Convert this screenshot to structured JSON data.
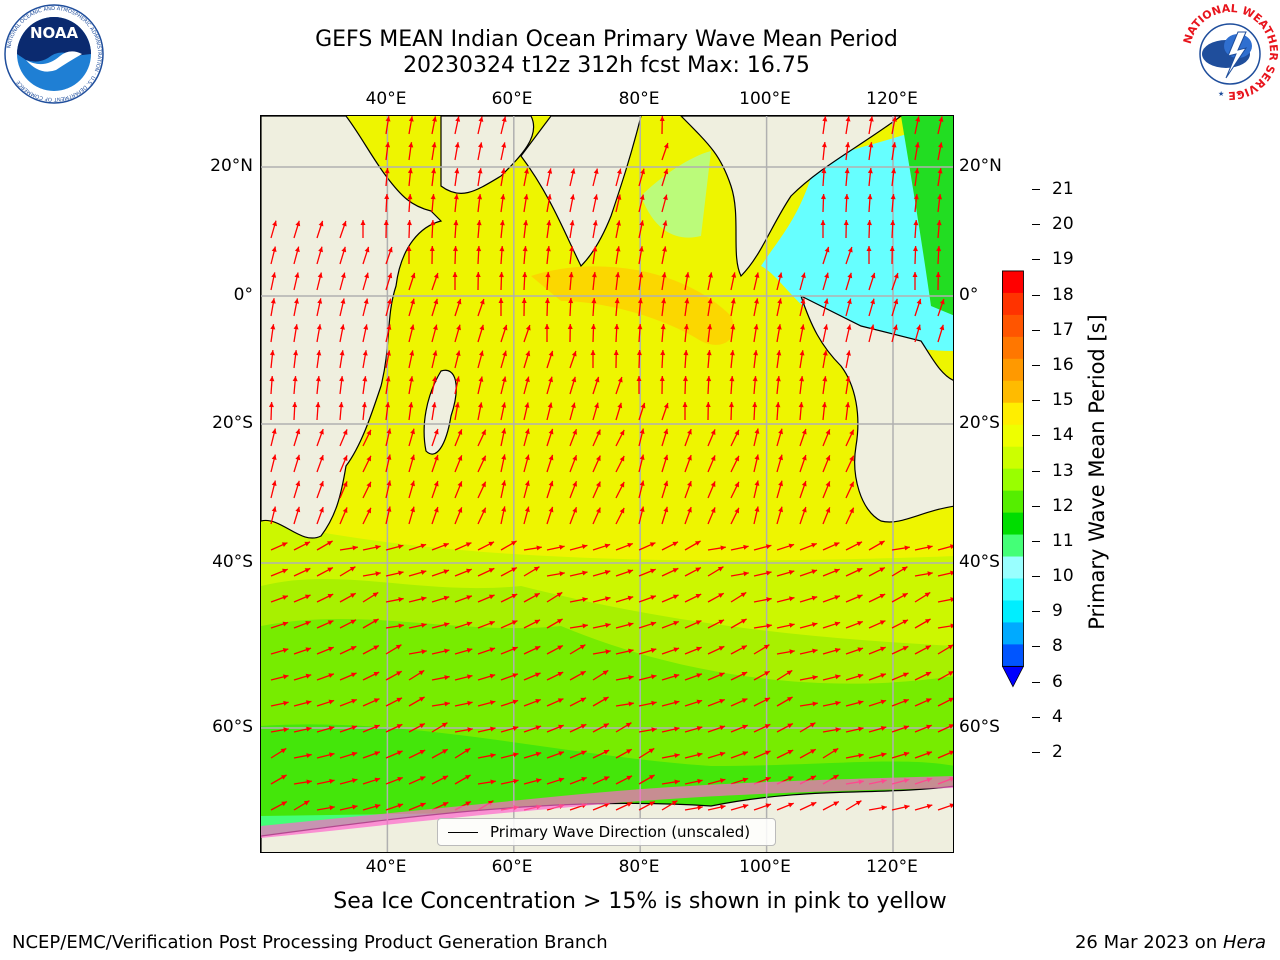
{
  "title": {
    "line1": "GEFS MEAN Indian Ocean Primary Wave Mean Period",
    "line2": "20230324 t12z 312h fcst   Max: 16.75"
  },
  "map": {
    "lon_labels": [
      "40°E",
      "60°E",
      "80°E",
      "100°E",
      "120°E"
    ],
    "lat_labels": [
      "20°N",
      "0°",
      "20°S",
      "40°S",
      "60°S"
    ],
    "lon_range": [
      20,
      130
    ],
    "lat_range": [
      -72,
      28
    ],
    "colors": {
      "land": "#efefdf",
      "grid": "#b0b0b0",
      "arrow": "#ff0000",
      "coast": "#000000"
    }
  },
  "colorbar": {
    "label": "Primary Wave Mean Period [s]",
    "ticks": [
      "21",
      "20",
      "19",
      "18",
      "17",
      "16",
      "15",
      "14",
      "13",
      "12",
      "11",
      "10",
      "9",
      "8",
      "6",
      "4",
      "2"
    ],
    "colors": [
      "#ff0000",
      "#ff3300",
      "#ff5500",
      "#ff7700",
      "#ff9900",
      "#ffbb00",
      "#ffee00",
      "#eeff00",
      "#ccff00",
      "#99ff00",
      "#55ee00",
      "#00dd00",
      "#44ff77",
      "#99ffff",
      "#44ffff",
      "#00eeff",
      "#00aaff",
      "#0055ff",
      "#0000ff"
    ]
  },
  "legend": {
    "label": "Primary Wave Direction (unscaled)"
  },
  "note": "Sea Ice Concentration > 15% is shown in pink to yellow",
  "footer": {
    "left": "NCEP/EMC/Verification Post Processing Product Generation Branch",
    "right_prefix": "26 Mar 2023 on ",
    "right_italic": "Hera"
  },
  "logos": {
    "left": "NOAA",
    "left_ring": "NATIONAL OCEANIC AND ATMOSPHERIC ADMINISTRATION · U.S. DEPARTMENT OF COMMERCE",
    "right_ring": "NATIONAL WEATHER SERVICE"
  }
}
